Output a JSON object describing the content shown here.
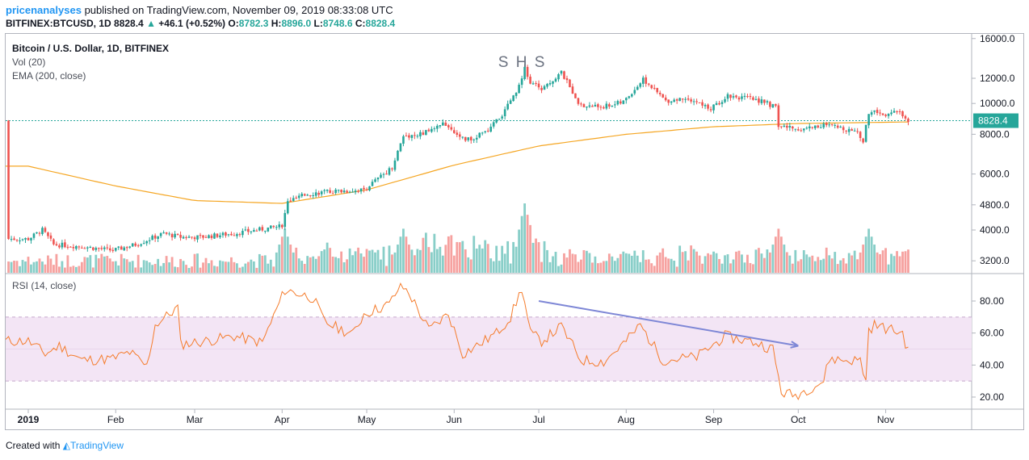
{
  "header": {
    "username": "pricenanalyses",
    "published": "published on TradingView.com, November 09, 2019 08:33:08 UTC",
    "symbol": "BITFINEX:BTCUSD, 1D",
    "close": "8828.4",
    "change": "+46.1 (+0.52%)",
    "o_label": "O:",
    "o": "8782.3",
    "h_label": "H:",
    "h": "8896.0",
    "l_label": "L:",
    "l": "8748.6",
    "c_label": "C:",
    "c": "8828.4"
  },
  "legend": {
    "title": "Bitcoin / U.S. Dollar, 1D, BITFINEX",
    "vol": "Vol (20)",
    "ema": "EMA (200, close)",
    "rsi": "RSI (14, close)"
  },
  "annotations": {
    "shs": "S H S"
  },
  "footer": {
    "created": "Created with",
    "brand": "TradingView"
  },
  "colors": {
    "up": "#26a69a",
    "down": "#ef5350",
    "ema": "#f5a623",
    "rsi": "#f57c2c",
    "rsi_band": "#f3e5f5",
    "trend_arrow": "#7e87d6",
    "last_price": "#26a69a"
  },
  "chart_data": [
    {
      "type": "candlestick",
      "title": "Bitcoin / U.S. Dollar, 1D, BITFINEX",
      "scale": "log",
      "y_ticks": [
        "16000.0",
        "12000.0",
        "10000.0",
        "8000.0",
        "6000.0",
        "4800.0",
        "4000.0",
        "3200.0"
      ],
      "last_price_label": "8828.4",
      "x_ticks": [
        "2019",
        "Feb",
        "Mar",
        "Apr",
        "May",
        "Jun",
        "Jul",
        "Aug",
        "Sep",
        "Oct",
        "Nov"
      ],
      "close_path": [
        [
          "2019-01-01",
          3750
        ],
        [
          "2019-01-06",
          4000
        ],
        [
          "2019-01-10",
          3600
        ],
        [
          "2019-01-20",
          3550
        ],
        [
          "2019-01-31",
          3450
        ],
        [
          "2019-02-08",
          3600
        ],
        [
          "2019-02-18",
          3900
        ],
        [
          "2019-02-24",
          3800
        ],
        [
          "2019-03-03",
          3800
        ],
        [
          "2019-03-15",
          3900
        ],
        [
          "2019-03-31",
          4100
        ],
        [
          "2019-04-01",
          4150
        ],
        [
          "2019-04-03",
          4900
        ],
        [
          "2019-04-10",
          5200
        ],
        [
          "2019-04-20",
          5300
        ],
        [
          "2019-04-30",
          5350
        ],
        [
          "2019-05-10",
          6300
        ],
        [
          "2019-05-14",
          7900
        ],
        [
          "2019-05-20",
          8000
        ],
        [
          "2019-05-29",
          8650
        ],
        [
          "2019-06-05",
          7650
        ],
        [
          "2019-06-12",
          8100
        ],
        [
          "2019-06-18",
          9200
        ],
        [
          "2019-06-23",
          10800
        ],
        [
          "2019-06-26",
          12900
        ],
        [
          "2019-06-28",
          11600
        ],
        [
          "2019-07-02",
          11100
        ],
        [
          "2019-07-09",
          12500
        ],
        [
          "2019-07-16",
          9800
        ],
        [
          "2019-07-24",
          9800
        ],
        [
          "2019-07-31",
          10100
        ],
        [
          "2019-08-07",
          11900
        ],
        [
          "2019-08-15",
          10200
        ],
        [
          "2019-08-23",
          10400
        ],
        [
          "2019-08-31",
          9600
        ],
        [
          "2019-09-06",
          10600
        ],
        [
          "2019-09-18",
          10200
        ],
        [
          "2019-09-23",
          9700
        ],
        [
          "2019-09-24",
          8500
        ],
        [
          "2019-10-01",
          8300
        ],
        [
          "2019-10-10",
          8550
        ],
        [
          "2019-10-22",
          8200
        ],
        [
          "2019-10-24",
          7450
        ],
        [
          "2019-10-25",
          8700
        ],
        [
          "2019-10-26",
          9300
        ],
        [
          "2019-10-27",
          9500
        ],
        [
          "2019-11-01",
          9250
        ],
        [
          "2019-11-05",
          9400
        ],
        [
          "2019-11-09",
          8828.4
        ]
      ],
      "ema_200_path": [
        [
          "2019-01-01",
          6350
        ],
        [
          "2019-02-01",
          5500
        ],
        [
          "2019-03-01",
          4950
        ],
        [
          "2019-04-01",
          4850
        ],
        [
          "2019-05-01",
          5350
        ],
        [
          "2019-06-01",
          6400
        ],
        [
          "2019-07-01",
          7350
        ],
        [
          "2019-08-01",
          8000
        ],
        [
          "2019-09-01",
          8450
        ],
        [
          "2019-10-01",
          8650
        ],
        [
          "2019-11-09",
          8750
        ]
      ],
      "annotations": [
        {
          "text": "S H S",
          "at": "2019-06-26"
        }
      ]
    },
    {
      "type": "bar",
      "title": "Vol (20)",
      "peaks": [
        [
          "2019-04-02",
          "high"
        ],
        [
          "2019-05-14",
          "high"
        ],
        [
          "2019-06-26",
          "highest"
        ],
        [
          "2019-09-24",
          "high"
        ],
        [
          "2019-10-26",
          "high"
        ]
      ]
    },
    {
      "type": "line",
      "title": "RSI (14, close)",
      "y_ticks": [
        "80.00",
        "60.00",
        "40.00",
        "20.00"
      ],
      "ylim": [
        10,
        95
      ],
      "bands": [
        70,
        30
      ],
      "series": [
        {
          "values": [
            [
              "2019-01-01",
              55
            ],
            [
              "2019-01-07",
              47
            ],
            [
              "2019-01-12",
              52
            ],
            [
              "2019-01-20",
              43
            ],
            [
              "2019-01-31",
              44
            ],
            [
              "2019-02-06",
              48
            ],
            [
              "2019-02-12",
              39
            ],
            [
              "2019-02-15",
              65
            ],
            [
              "2019-02-23",
              76
            ],
            [
              "2019-02-24",
              53
            ],
            [
              "2019-03-05",
              55
            ],
            [
              "2019-03-15",
              58
            ],
            [
              "2019-03-25",
              54
            ],
            [
              "2019-04-02",
              87
            ],
            [
              "2019-04-12",
              82
            ],
            [
              "2019-04-16",
              67
            ],
            [
              "2019-04-26",
              59
            ],
            [
              "2019-04-30",
              72
            ],
            [
              "2019-05-09",
              78
            ],
            [
              "2019-05-13",
              90
            ],
            [
              "2019-05-16",
              85
            ],
            [
              "2019-05-23",
              62
            ],
            [
              "2019-05-30",
              72
            ],
            [
              "2019-06-04",
              47
            ],
            [
              "2019-06-10",
              53
            ],
            [
              "2019-06-16",
              60
            ],
            [
              "2019-06-21",
              70
            ],
            [
              "2019-06-25",
              88
            ],
            [
              "2019-06-28",
              60
            ],
            [
              "2019-07-02",
              55
            ],
            [
              "2019-07-09",
              64
            ],
            [
              "2019-07-16",
              43
            ],
            [
              "2019-07-24",
              42
            ],
            [
              "2019-08-01",
              55
            ],
            [
              "2019-08-06",
              65
            ],
            [
              "2019-08-14",
              43
            ],
            [
              "2019-08-26",
              45
            ],
            [
              "2019-09-05",
              58
            ],
            [
              "2019-09-16",
              54
            ],
            [
              "2019-09-22",
              50
            ],
            [
              "2019-09-25",
              23
            ],
            [
              "2019-09-30",
              21
            ],
            [
              "2019-10-10",
              30
            ],
            [
              "2019-10-12",
              44
            ],
            [
              "2019-10-18",
              43
            ],
            [
              "2019-10-23",
              43
            ],
            [
              "2019-10-25",
              30
            ],
            [
              "2019-10-26",
              62
            ],
            [
              "2019-10-28",
              65
            ],
            [
              "2019-11-03",
              62
            ],
            [
              "2019-11-07",
              60
            ],
            [
              "2019-11-09",
              48
            ]
          ]
        }
      ],
      "trendline": {
        "from": [
          "2019-07-01",
          80
        ],
        "to": [
          "2019-10-01",
          52
        ]
      }
    }
  ]
}
